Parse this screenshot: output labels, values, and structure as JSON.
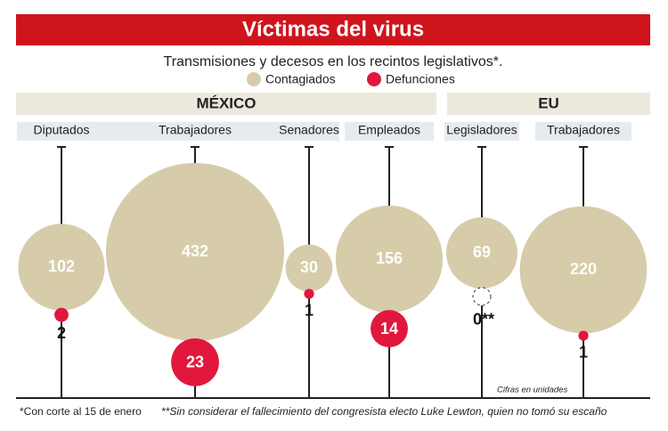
{
  "chart_data": {
    "type": "bubble",
    "title": "Víctimas del virus",
    "subtitle": "Transmisiones y decesos en los recintos legislativos*.",
    "series": [
      {
        "name": "Contagiados",
        "color": "#d6cca9"
      },
      {
        "name": "Defunciones",
        "color": "#e2173d"
      }
    ],
    "groups": [
      {
        "name": "MÉXICO",
        "categories": [
          "Diputados",
          "Trabajadores",
          "Senadores",
          "Empleados"
        ],
        "values": [
          [
            102,
            432,
            30,
            156
          ],
          [
            2,
            23,
            1,
            14
          ]
        ]
      },
      {
        "name": "EU",
        "categories": [
          "Legisladores",
          "Trabajadores"
        ],
        "values": [
          [
            69,
            220
          ],
          [
            0,
            1
          ]
        ],
        "value_labels": [
          [
            "69",
            "220"
          ],
          [
            "0**",
            "1"
          ]
        ]
      }
    ],
    "notes": [
      "*Con corte al 15 de enero",
      "**Sin considerar el fallecimiento del congresista electo Luke Lewton, quien no tomó su escaño",
      "Cifras en unidades"
    ]
  }
}
